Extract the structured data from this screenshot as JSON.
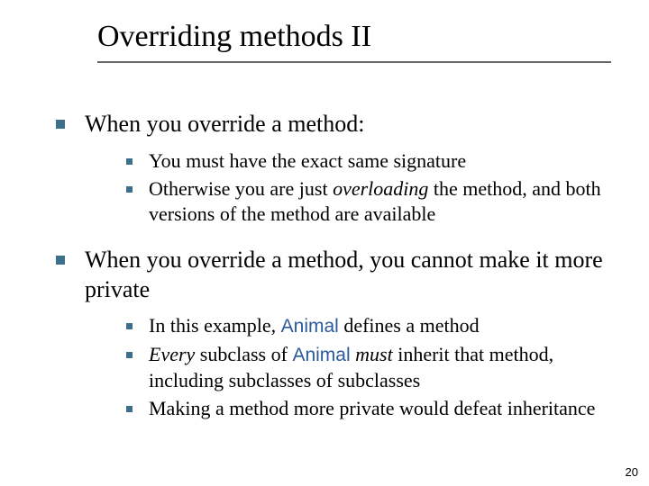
{
  "colors": {
    "bullet": "#3e6f8a",
    "underline": "#666666",
    "code": "#2a5a9a",
    "text": "#000000",
    "background": "#ffffff"
  },
  "title": "Overriding methods II",
  "page_number": "20",
  "points": {
    "p1": "When you override a method:",
    "p1_sub1": "You must have the exact same signature",
    "p1_sub2_a": "Otherwise you are just ",
    "p1_sub2_b": "overloading",
    "p1_sub2_c": " the method, and both versions of the method are available",
    "p2": "When you override a method, you cannot make it more private",
    "p2_sub1_a": "In this example, ",
    "p2_sub1_b": "Animal",
    "p2_sub1_c": " defines a method",
    "p2_sub2_a": "Every",
    "p2_sub2_b": " subclass of ",
    "p2_sub2_c": "Animal",
    "p2_sub2_d": " must",
    "p2_sub2_e": " inherit that method, including subclasses of subclasses",
    "p2_sub3": "Making a method more private would defeat inheritance"
  }
}
